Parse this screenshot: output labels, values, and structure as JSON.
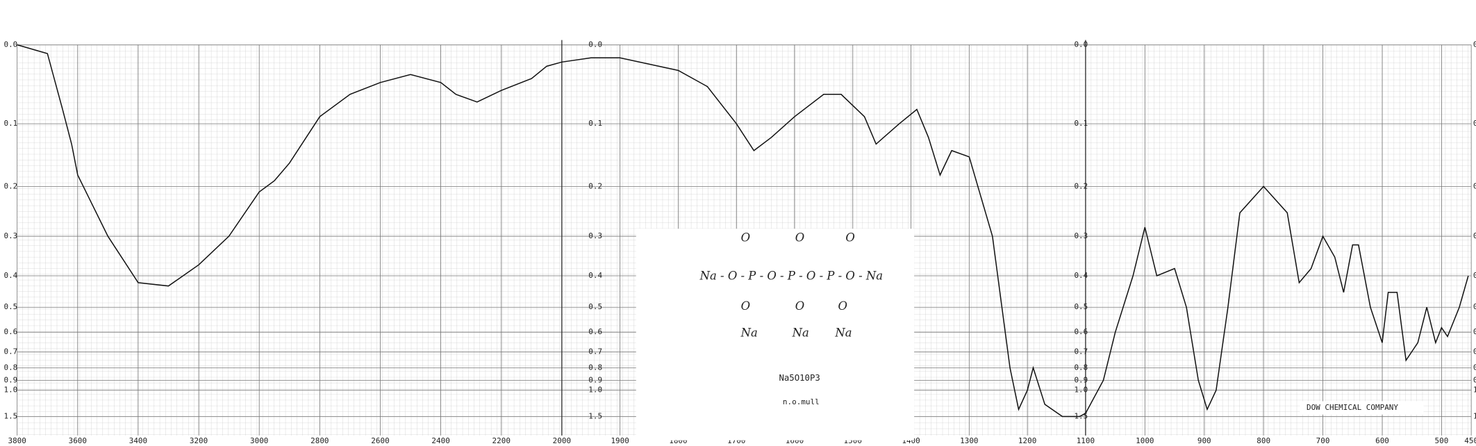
{
  "chart_data": {
    "type": "line",
    "yscale": "absorbance",
    "grid": true,
    "color": "#111111",
    "xlim": [
      3800,
      450
    ],
    "xbreaks": [
      3800,
      2000,
      1100,
      450
    ],
    "ylim": [
      0,
      1.5
    ],
    "xticks": [
      3800,
      3600,
      3400,
      3200,
      3000,
      2800,
      2600,
      2400,
      2200,
      2000,
      1900,
      1800,
      1700,
      1600,
      1500,
      1400,
      1300,
      1200,
      1100,
      1000,
      900,
      800,
      700,
      600,
      500,
      450
    ],
    "yticks": [
      {
        "value": 0,
        "label": "0.0"
      },
      0.1,
      0.2,
      0.3,
      0.4,
      0.5,
      0.6,
      0.7,
      0.8,
      0.9,
      {
        "value": 1,
        "label": "1.0"
      },
      1.5
    ],
    "x": [
      3800,
      3700,
      3650,
      3620,
      3600,
      3500,
      3400,
      3300,
      3200,
      3100,
      3000,
      2950,
      2900,
      2800,
      2700,
      2600,
      2500,
      2400,
      2350,
      2280,
      2200,
      2100,
      2050,
      2000,
      1950,
      1900,
      1800,
      1750,
      1700,
      1670,
      1640,
      1600,
      1550,
      1520,
      1480,
      1460,
      1420,
      1390,
      1370,
      1350,
      1330,
      1300,
      1260,
      1230,
      1215,
      1200,
      1190,
      1170,
      1140,
      1110,
      1100,
      1070,
      1050,
      1020,
      1000,
      980,
      950,
      930,
      910,
      895,
      880,
      860,
      840,
      800,
      760,
      740,
      720,
      700,
      680,
      665,
      650,
      640,
      620,
      600,
      590,
      575,
      560,
      540,
      525,
      510,
      500,
      490,
      470,
      455
    ],
    "values": [
      0,
      0.01,
      0.08,
      0.13,
      0.18,
      0.3,
      0.42,
      0.43,
      0.37,
      0.3,
      0.21,
      0.19,
      0.16,
      0.09,
      0.06,
      0.045,
      0.035,
      0.045,
      0.06,
      0.07,
      0.055,
      0.04,
      0.025,
      0.02,
      0.015,
      0.015,
      0.03,
      0.05,
      0.1,
      0.14,
      0.12,
      0.09,
      0.06,
      0.06,
      0.09,
      0.13,
      0.1,
      0.08,
      0.12,
      0.18,
      0.14,
      0.15,
      0.3,
      0.8,
      1.3,
      1.0,
      0.8,
      1.2,
      1.5,
      1.5,
      1.4,
      0.9,
      0.6,
      0.4,
      0.28,
      0.4,
      0.38,
      0.5,
      0.9,
      1.3,
      1.0,
      0.5,
      0.25,
      0.2,
      0.25,
      0.42,
      0.38,
      0.3,
      0.35,
      0.45,
      0.32,
      0.32,
      0.5,
      0.65,
      0.45,
      0.45,
      0.75,
      0.65,
      0.5,
      0.65,
      0.58,
      0.62,
      0.5,
      0.4
    ],
    "structure": {
      "top": [
        "O",
        "O",
        "O"
      ],
      "chain": "Na - O - P - O - P - O - P - O - Na",
      "bottom": [
        "O",
        "O",
        "O"
      ],
      "sodium": [
        "Na",
        "Na",
        "Na"
      ]
    },
    "formula": "Na5O10P3",
    "sample": "n.o.mull",
    "source": "DOW CHEMICAL COMPANY"
  }
}
